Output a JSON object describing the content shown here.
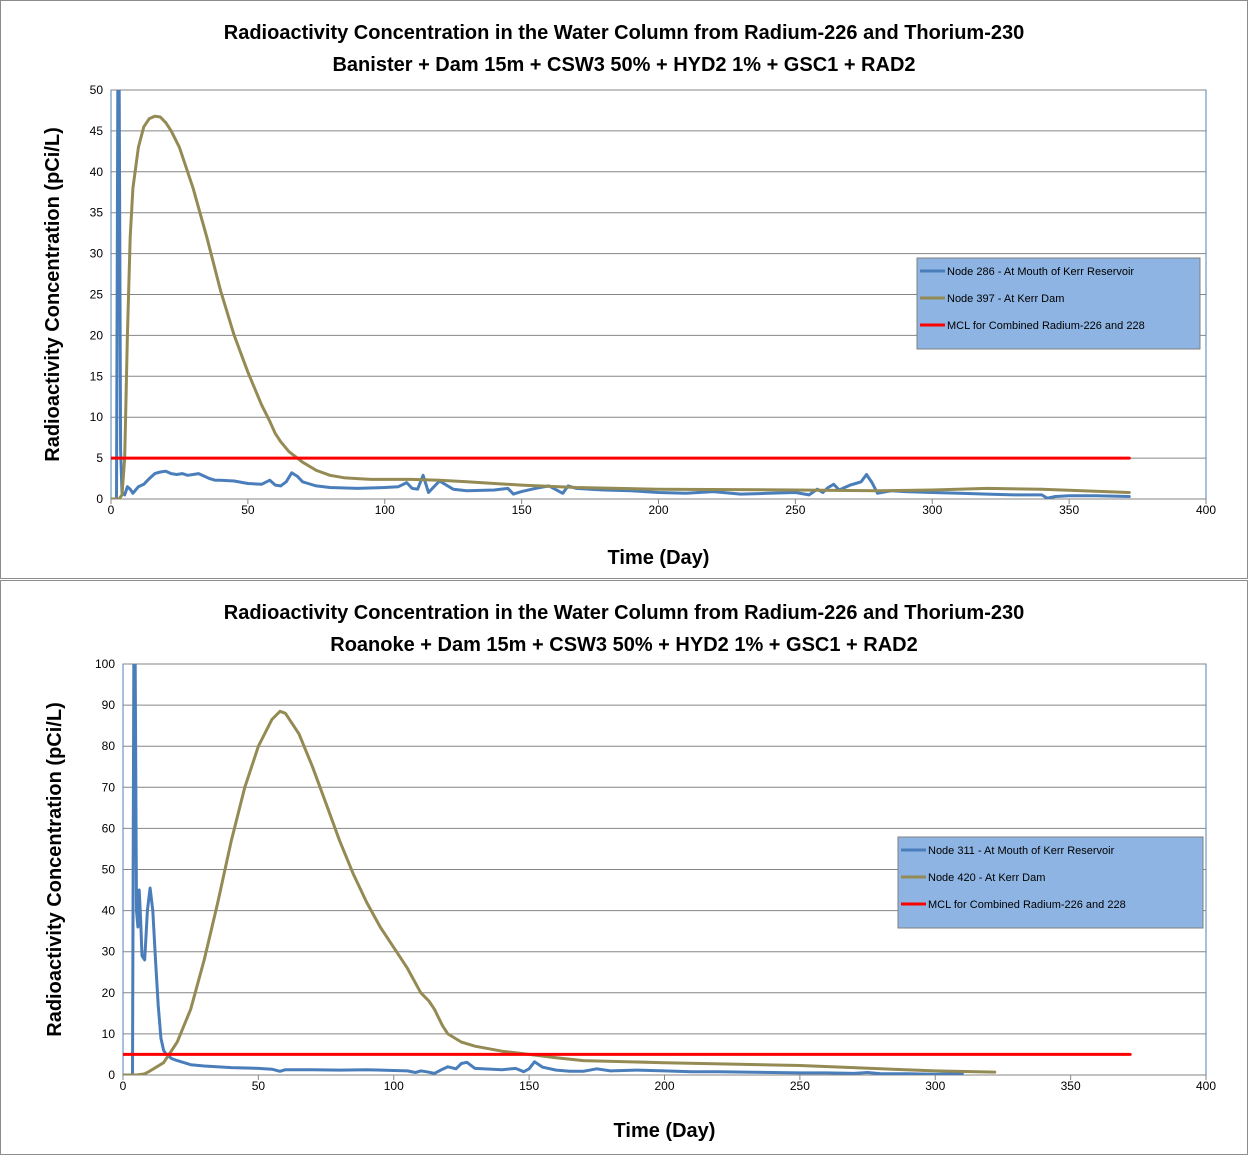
{
  "chart_data": [
    {
      "type": "line",
      "title": "Radioactivity Concentration in the Water Column from Radium-226 and Thorium-230",
      "subtitle": "Banister + Dam 15m + CSW3 50% + HYD2 1% + GSC1 + RAD2",
      "xlabel": "Time (Day)",
      "ylabel": "Radioactivity Concentration (pCi/L)",
      "xlim": [
        0,
        400
      ],
      "ylim": [
        0,
        50
      ],
      "xticks": [
        0,
        50,
        100,
        150,
        200,
        250,
        300,
        350,
        400
      ],
      "yticks": [
        0,
        5,
        10,
        15,
        20,
        25,
        30,
        35,
        40,
        45,
        50
      ],
      "grid": "horizontal",
      "legend_position": "right",
      "series": [
        {
          "name": "Node 286 - At Mouth of Kerr Reservoir",
          "color": "#4a7ebb",
          "x": [
            0,
            2,
            2.5,
            3,
            3.5,
            4,
            5,
            6,
            7,
            8,
            9,
            10,
            12,
            14,
            16,
            18,
            20,
            22,
            24,
            26,
            28,
            30,
            32,
            34,
            36,
            38,
            40,
            45,
            50,
            55,
            58,
            60,
            62,
            64,
            66,
            68,
            70,
            72,
            75,
            80,
            90,
            100,
            105,
            108,
            110,
            112,
            114,
            116,
            118,
            120,
            125,
            130,
            140,
            145,
            147,
            150,
            155,
            160,
            165,
            167,
            170,
            175,
            180,
            190,
            200,
            210,
            220,
            230,
            240,
            250,
            255,
            258,
            260,
            262,
            264,
            266,
            268,
            270,
            272,
            274,
            276,
            278,
            280,
            285,
            290,
            300,
            310,
            320,
            330,
            340,
            342,
            345,
            350,
            360,
            372
          ],
          "y": [
            0,
            0,
            50,
            50,
            6,
            0.8,
            0.5,
            1.5,
            1.2,
            0.7,
            1.1,
            1.5,
            1.8,
            2.5,
            3.1,
            3.3,
            3.4,
            3.1,
            3.0,
            3.1,
            2.9,
            3.0,
            3.1,
            2.8,
            2.5,
            2.3,
            2.3,
            2.2,
            1.9,
            1.8,
            2.3,
            1.7,
            1.6,
            2.1,
            3.2,
            2.8,
            2.1,
            1.9,
            1.6,
            1.4,
            1.3,
            1.4,
            1.5,
            2.0,
            1.3,
            1.2,
            2.9,
            0.8,
            1.5,
            2.2,
            1.2,
            1.0,
            1.1,
            1.3,
            0.6,
            0.9,
            1.3,
            1.6,
            0.7,
            1.6,
            1.3,
            1.2,
            1.1,
            1.0,
            0.8,
            0.7,
            0.9,
            0.6,
            0.7,
            0.8,
            0.5,
            1.2,
            0.8,
            1.4,
            1.8,
            1.1,
            1.4,
            1.7,
            1.9,
            2.1,
            3.0,
            2.0,
            0.7,
            1.0,
            0.9,
            0.8,
            0.7,
            0.6,
            0.5,
            0.5,
            0.1,
            0.3,
            0.4,
            0.4,
            0.3
          ]
        },
        {
          "name": "Node 397 - At Kerr Dam",
          "color": "#948a54",
          "x": [
            0,
            3,
            4,
            5,
            6,
            7,
            8,
            10,
            12,
            14,
            16,
            18,
            20,
            22,
            25,
            30,
            35,
            40,
            45,
            50,
            55,
            58,
            60,
            62,
            65,
            70,
            75,
            80,
            85,
            90,
            95,
            100,
            110,
            120,
            130,
            140,
            150,
            170,
            200,
            250,
            280,
            300,
            320,
            340,
            372
          ],
          "y": [
            0,
            0,
            0.5,
            5,
            20,
            32,
            38,
            43,
            45.5,
            46.5,
            46.8,
            46.7,
            46,
            45,
            43,
            38,
            32,
            25.5,
            20,
            15.5,
            11.5,
            9.5,
            8,
            7,
            5.8,
            4.5,
            3.5,
            2.9,
            2.6,
            2.5,
            2.4,
            2.4,
            2.4,
            2.3,
            2.1,
            1.9,
            1.7,
            1.4,
            1.2,
            1.1,
            1.0,
            1.1,
            1.3,
            1.2,
            0.8
          ]
        },
        {
          "name": "MCL for Combined Radium-226 and 228",
          "color": "#ff0000",
          "x": [
            0,
            372
          ],
          "y": [
            5,
            5
          ]
        }
      ]
    },
    {
      "type": "line",
      "title": "Radioactivity Concentration in the Water Column from Radium-226 and Thorium-230",
      "subtitle": "Roanoke + Dam 15m + CSW3 50% + HYD2 1% + GSC1 + RAD2",
      "xlabel": "Time (Day)",
      "ylabel": "Radioactivity Concentration (pCi/L)",
      "xlim": [
        0,
        400
      ],
      "ylim": [
        0,
        100
      ],
      "xticks": [
        0,
        50,
        100,
        150,
        200,
        250,
        300,
        350,
        400
      ],
      "yticks": [
        0,
        10,
        20,
        30,
        40,
        50,
        60,
        70,
        80,
        90,
        100
      ],
      "grid": "horizontal",
      "legend_position": "right",
      "series": [
        {
          "name": "Node 311 - At Mouth of Kerr Reservoir",
          "color": "#4a7ebb",
          "x": [
            0,
            3.5,
            4,
            4.5,
            5,
            5.5,
            6,
            6.5,
            7,
            8,
            9,
            10,
            11,
            12,
            13,
            14,
            15,
            16,
            18,
            20,
            25,
            30,
            40,
            50,
            55,
            58,
            60,
            70,
            80,
            90,
            100,
            105,
            108,
            110,
            112,
            115,
            118,
            120,
            123,
            125,
            127,
            130,
            140,
            145,
            148,
            150,
            152,
            155,
            160,
            165,
            170,
            175,
            180,
            190,
            200,
            210,
            220,
            230,
            240,
            250,
            260,
            270,
            275,
            280,
            290,
            300,
            310
          ],
          "y": [
            0,
            0,
            100,
            100,
            40,
            36,
            45,
            38,
            29,
            28,
            40,
            45.5,
            40,
            28,
            17,
            9,
            6,
            5,
            4,
            3.5,
            2.5,
            2.2,
            1.8,
            1.6,
            1.4,
            0.9,
            1.3,
            1.3,
            1.2,
            1.3,
            1.1,
            1.0,
            0.6,
            1.0,
            0.8,
            0.4,
            1.4,
            2.0,
            1.5,
            2.8,
            3.1,
            1.6,
            1.3,
            1.6,
            0.8,
            1.5,
            3.2,
            1.9,
            1.2,
            0.9,
            0.9,
            1.5,
            1.0,
            1.2,
            1.0,
            0.8,
            0.8,
            0.7,
            0.6,
            0.5,
            0.5,
            0.4,
            0.6,
            0.3,
            0.3,
            0.2,
            0.3
          ]
        },
        {
          "name": "Node 420 - At Kerr Dam",
          "color": "#948a54",
          "x": [
            0,
            5,
            8,
            10,
            15,
            20,
            25,
            30,
            35,
            40,
            45,
            50,
            55,
            58,
            60,
            65,
            70,
            75,
            80,
            85,
            90,
            95,
            100,
            105,
            110,
            113,
            115,
            118,
            120,
            125,
            130,
            140,
            150,
            160,
            170,
            200,
            250,
            280,
            300,
            322
          ],
          "y": [
            0,
            0,
            0.3,
            1,
            3,
            8,
            16,
            28,
            42,
            57,
            70,
            80,
            86.5,
            88.5,
            88,
            83,
            75,
            66,
            57,
            49,
            42,
            36,
            31,
            26,
            20,
            18,
            16,
            12,
            10,
            8,
            7,
            5.8,
            5,
            4.2,
            3.5,
            3.0,
            2.3,
            1.5,
            1.0,
            0.7
          ]
        },
        {
          "name": "MCL for Combined Radium-226 and 228",
          "color": "#ff0000",
          "x": [
            0,
            372
          ],
          "y": [
            5,
            5
          ]
        }
      ]
    }
  ]
}
